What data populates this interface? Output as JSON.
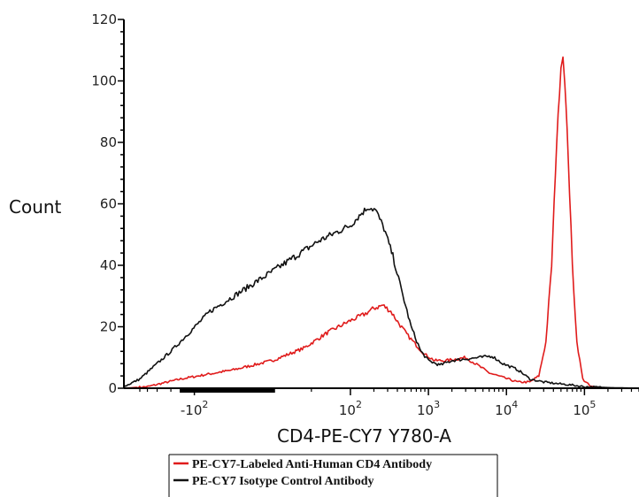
{
  "chart_data": {
    "type": "line",
    "title": "",
    "xlabel": "CD4-PE-CY7 Y780-A",
    "ylabel": "Count",
    "xscale": "biexponential (logicle)",
    "xlim": [
      -800,
      500000
    ],
    "ylim": [
      0,
      120
    ],
    "y_ticks": [
      0,
      20,
      40,
      60,
      80,
      100,
      120
    ],
    "x_ticks": [
      {
        "value": -100,
        "base": "-10",
        "exp": "2"
      },
      {
        "value": 100,
        "base": "10",
        "exp": "2"
      },
      {
        "value": 1000,
        "base": "10",
        "exp": "3"
      },
      {
        "value": 10000,
        "base": "10",
        "exp": "4"
      },
      {
        "value": 100000,
        "base": "10",
        "exp": "5"
      }
    ],
    "grid": false,
    "legend_position": "bottom",
    "series": [
      {
        "name": "PE-CY7-Labeled Anti-Human CD4 Antibody",
        "color": "#e01b1b",
        "points": [
          [
            -800,
            0
          ],
          [
            -400,
            0.5
          ],
          [
            -150,
            3
          ],
          [
            -50,
            6
          ],
          [
            0,
            9
          ],
          [
            40,
            13
          ],
          [
            70,
            18
          ],
          [
            100,
            22
          ],
          [
            150,
            24
          ],
          [
            200,
            26
          ],
          [
            260,
            27
          ],
          [
            330,
            25
          ],
          [
            420,
            21
          ],
          [
            550,
            17
          ],
          [
            700,
            14
          ],
          [
            900,
            11
          ],
          [
            1200,
            9
          ],
          [
            1700,
            9
          ],
          [
            2300,
            9.5
          ],
          [
            3000,
            10
          ],
          [
            4000,
            8
          ],
          [
            6000,
            5
          ],
          [
            9000,
            3.5
          ],
          [
            14000,
            2
          ],
          [
            20000,
            2
          ],
          [
            26000,
            4
          ],
          [
            32000,
            15
          ],
          [
            38000,
            40
          ],
          [
            44000,
            80
          ],
          [
            50000,
            105
          ],
          [
            53000,
            108
          ],
          [
            56000,
            100
          ],
          [
            62000,
            75
          ],
          [
            70000,
            40
          ],
          [
            80000,
            15
          ],
          [
            95000,
            3
          ],
          [
            120000,
            0.5
          ],
          [
            200000,
            0
          ],
          [
            500000,
            0
          ]
        ]
      },
      {
        "name": "PE-CY7 Isotype Control Antibody",
        "color": "#111111",
        "points": [
          [
            -800,
            0.5
          ],
          [
            -500,
            3
          ],
          [
            -200,
            12
          ],
          [
            -80,
            25
          ],
          [
            0,
            38
          ],
          [
            60,
            48
          ],
          [
            100,
            53
          ],
          [
            140,
            57
          ],
          [
            170,
            59
          ],
          [
            210,
            58
          ],
          [
            270,
            52
          ],
          [
            350,
            43
          ],
          [
            450,
            32
          ],
          [
            600,
            20
          ],
          [
            800,
            12
          ],
          [
            1000,
            9
          ],
          [
            1400,
            7.5
          ],
          [
            2000,
            9
          ],
          [
            3000,
            9.5
          ],
          [
            4500,
            10
          ],
          [
            6500,
            10.5
          ],
          [
            9000,
            8
          ],
          [
            14000,
            6
          ],
          [
            20000,
            3
          ],
          [
            30000,
            2
          ],
          [
            45000,
            1.5
          ],
          [
            70000,
            1
          ],
          [
            100000,
            0.5
          ],
          [
            200000,
            0.2
          ],
          [
            500000,
            0
          ]
        ]
      }
    ]
  }
}
